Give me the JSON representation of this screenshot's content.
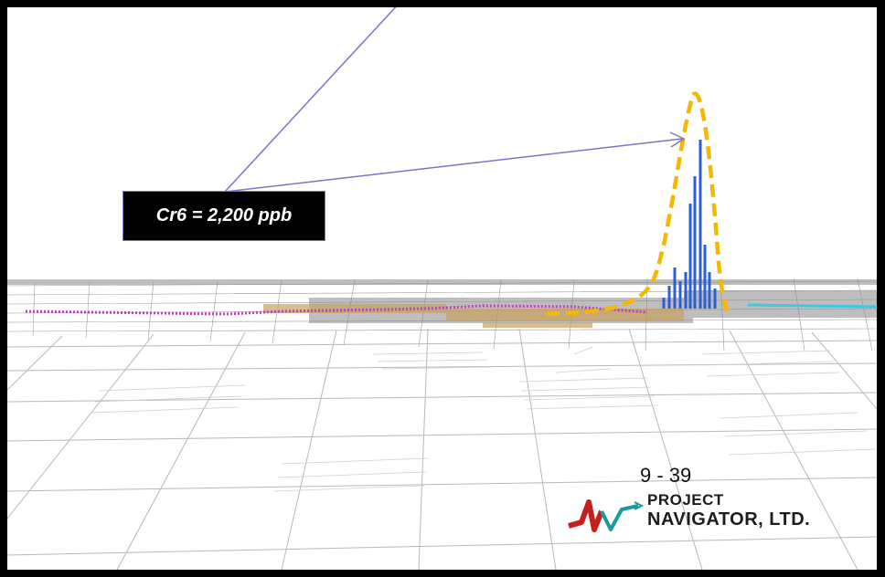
{
  "callout": {
    "label": "Cr6 = 2,200 ppb"
  },
  "slide": {
    "page_number": "9 - 39"
  },
  "logo": {
    "line1": "PROJECT",
    "line2": "NAVIGATOR, LTD."
  },
  "colors": {
    "background": "#000000",
    "map_bg": "#ffffff",
    "parcel_lines": "#b0b0b0",
    "callout_fill": "#000000",
    "pointer_line": "#7a75c8",
    "plume_outline": "#f5b800",
    "concentration_bars": "#2a5fd6",
    "pipeline_purple": "#c040c0",
    "pipeline_cyan": "#40c8e0"
  }
}
